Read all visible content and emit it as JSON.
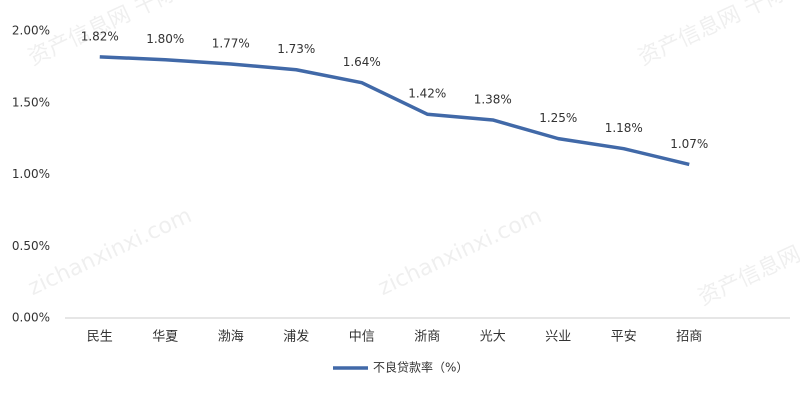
{
  "chart_data": {
    "type": "line",
    "categories": [
      "民生",
      "华夏",
      "渤海",
      "浦发",
      "中信",
      "浙商",
      "光大",
      "兴业",
      "平安",
      "招商"
    ],
    "series": [
      {
        "name": "不良贷款率（%）",
        "color": "#4169a8",
        "values": [
          1.82,
          1.8,
          1.77,
          1.73,
          1.64,
          1.42,
          1.38,
          1.25,
          1.18,
          1.07
        ],
        "value_labels": [
          "1.82%",
          "1.80%",
          "1.77%",
          "1.73%",
          "1.64%",
          "1.42%",
          "1.38%",
          "1.25%",
          "1.18%",
          "1.07%"
        ]
      }
    ],
    "ylim": [
      0,
      2
    ],
    "yticks": [
      {
        "value": 0,
        "label": "0.00%"
      },
      {
        "value": 0.5,
        "label": "0.50%"
      },
      {
        "value": 1,
        "label": "1.00%"
      },
      {
        "value": 1.5,
        "label": "1.50%"
      },
      {
        "value": 2,
        "label": "2.00%"
      }
    ],
    "grid": false,
    "legend": "bottom",
    "watermarks": [
      "资产信息网 千际投行",
      "zichanxinxi.com"
    ]
  }
}
